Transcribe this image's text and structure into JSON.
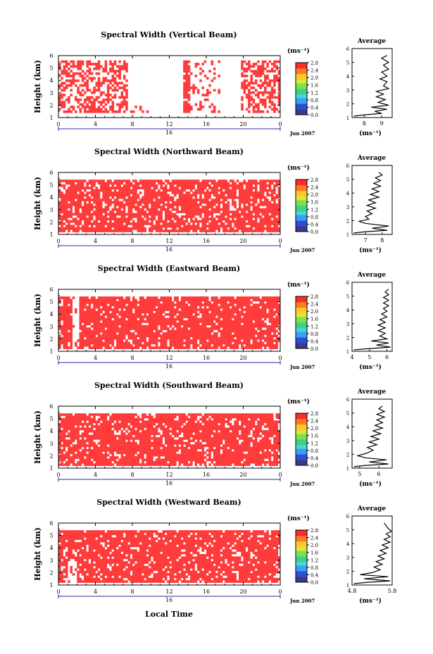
{
  "figure": {
    "xaxis_title": "Local Time",
    "cb_unit": "(ms⁻¹)",
    "avg_unit": "(ms⁻¹)",
    "avg_title": "Average",
    "day_label": "16",
    "month_label": "Jun 2007",
    "xticks": [
      "0",
      "4",
      "8",
      "12",
      "16",
      "20",
      "0"
    ],
    "yticks": [
      "1",
      "2",
      "3",
      "4",
      "5",
      "6"
    ],
    "cb_ticks": [
      "0.0",
      "0.4",
      "0.8",
      "1.2",
      "1.6",
      "2.0",
      "2.4",
      "2.8"
    ],
    "cb_ticks_top_variant": [
      "0.0",
      "0.4",
      "0.8",
      "1.2",
      "1.6",
      "2.0",
      "2.4",
      "2.8"
    ],
    "ylabel": "Height (km)",
    "colors": {
      "red": "#ff3b3b",
      "cmap": [
        "#3a3a8a",
        "#2d4fd8",
        "#3aa0f0",
        "#45d6e0",
        "#3fd08a",
        "#7fe04a",
        "#d8e83a",
        "#ffc82a",
        "#ff7a20",
        "#ff2a2a"
      ]
    }
  },
  "chart_data": [
    {
      "type": "heatmap",
      "title": "Spectral Width (Vertical Beam)",
      "xlabel": "Local Time",
      "ylabel": "Height (km)",
      "xlim": [
        0,
        24
      ],
      "ylim": [
        1,
        6
      ],
      "colorbar": {
        "label": "(ms⁻¹)",
        "range": [
          0.0,
          2.8
        ]
      },
      "average": {
        "xlabel": "(ms⁻¹)",
        "xticks": [
          "8",
          "9"
        ],
        "xlim": [
          7.3,
          9.6
        ],
        "profile": [
          [
            7.4,
            1.1
          ],
          [
            8.0,
            1.2
          ],
          [
            9.0,
            1.3
          ],
          [
            8.6,
            1.45
          ],
          [
            9.3,
            1.6
          ],
          [
            8.4,
            1.75
          ],
          [
            9.4,
            1.9
          ],
          [
            8.8,
            2.1
          ],
          [
            9.2,
            2.3
          ],
          [
            8.7,
            2.5
          ],
          [
            9.1,
            2.7
          ],
          [
            8.7,
            2.9
          ],
          [
            9.4,
            3.1
          ],
          [
            9.1,
            3.3
          ],
          [
            9.3,
            3.6
          ],
          [
            8.9,
            3.8
          ],
          [
            9.3,
            4.0
          ],
          [
            9.0,
            4.3
          ],
          [
            9.4,
            4.5
          ],
          [
            9.1,
            4.8
          ],
          [
            9.4,
            5.0
          ],
          [
            9.0,
            5.3
          ],
          [
            9.3,
            5.5
          ]
        ]
      }
    },
    {
      "type": "heatmap",
      "title": "Spectral Width (Northward Beam)",
      "xlabel": "Local Time",
      "ylabel": "Height (km)",
      "xlim": [
        0,
        24
      ],
      "ylim": [
        1,
        6
      ],
      "colorbar": {
        "label": "(ms⁻¹)",
        "range": [
          0.0,
          2.8
        ]
      },
      "average": {
        "xlabel": "(ms⁻¹)",
        "xticks": [
          "7",
          "8"
        ],
        "xlim": [
          6.2,
          8.6
        ],
        "profile": [
          [
            6.3,
            1.1
          ],
          [
            7.0,
            1.2
          ],
          [
            8.3,
            1.3
          ],
          [
            7.4,
            1.45
          ],
          [
            8.4,
            1.6
          ],
          [
            7.0,
            1.8
          ],
          [
            6.6,
            1.95
          ],
          [
            7.2,
            2.1
          ],
          [
            7.0,
            2.3
          ],
          [
            7.4,
            2.5
          ],
          [
            7.1,
            2.7
          ],
          [
            7.6,
            2.9
          ],
          [
            7.1,
            3.1
          ],
          [
            7.6,
            3.3
          ],
          [
            7.2,
            3.5
          ],
          [
            7.8,
            3.7
          ],
          [
            7.3,
            3.9
          ],
          [
            7.8,
            4.1
          ],
          [
            7.4,
            4.3
          ],
          [
            7.9,
            4.5
          ],
          [
            7.5,
            4.7
          ],
          [
            7.9,
            4.9
          ],
          [
            7.6,
            5.1
          ],
          [
            8.0,
            5.3
          ],
          [
            7.8,
            5.5
          ]
        ]
      }
    },
    {
      "type": "heatmap",
      "title": "Spectral Width (Eastward Beam)",
      "xlabel": "Local Time",
      "ylabel": "Height (km)",
      "xlim": [
        0,
        24
      ],
      "ylim": [
        1,
        6
      ],
      "colorbar": {
        "label": "(ms⁻¹)",
        "range": [
          0.0,
          2.8
        ]
      },
      "average": {
        "xlabel": "(ms⁻¹)",
        "xticks": [
          "4",
          "5",
          "6"
        ],
        "xlim": [
          4.0,
          6.3
        ],
        "profile": [
          [
            4.1,
            1.1
          ],
          [
            5.0,
            1.2
          ],
          [
            6.2,
            1.3
          ],
          [
            5.4,
            1.45
          ],
          [
            6.1,
            1.6
          ],
          [
            5.1,
            1.75
          ],
          [
            6.0,
            1.9
          ],
          [
            5.6,
            2.1
          ],
          [
            5.9,
            2.3
          ],
          [
            5.5,
            2.5
          ],
          [
            5.9,
            2.7
          ],
          [
            5.5,
            2.9
          ],
          [
            5.9,
            3.1
          ],
          [
            5.6,
            3.3
          ],
          [
            6.0,
            3.5
          ],
          [
            5.7,
            3.7
          ],
          [
            6.0,
            3.9
          ],
          [
            5.8,
            4.1
          ],
          [
            6.1,
            4.3
          ],
          [
            5.8,
            4.5
          ],
          [
            6.1,
            4.7
          ],
          [
            5.8,
            4.9
          ],
          [
            6.1,
            5.1
          ],
          [
            5.9,
            5.3
          ],
          [
            6.1,
            5.5
          ]
        ]
      }
    },
    {
      "type": "heatmap",
      "title": "Spectral Width (Southward Beam)",
      "xlabel": "Local Time",
      "ylabel": "Height (km)",
      "xlim": [
        0,
        24
      ],
      "ylim": [
        1,
        6
      ],
      "colorbar": {
        "label": "(ms⁻¹)",
        "range": [
          0.0,
          2.8
        ]
      },
      "average": {
        "xlabel": "(ms⁻¹)",
        "xticks": [
          "5",
          "6"
        ],
        "xlim": [
          4.6,
          6.7
        ],
        "profile": [
          [
            4.7,
            1.1
          ],
          [
            5.3,
            1.2
          ],
          [
            6.5,
            1.3
          ],
          [
            5.5,
            1.45
          ],
          [
            6.4,
            1.6
          ],
          [
            5.3,
            1.75
          ],
          [
            4.9,
            1.9
          ],
          [
            5.4,
            2.1
          ],
          [
            5.7,
            2.3
          ],
          [
            5.4,
            2.5
          ],
          [
            5.9,
            2.7
          ],
          [
            5.5,
            2.9
          ],
          [
            6.0,
            3.1
          ],
          [
            5.6,
            3.3
          ],
          [
            6.1,
            3.5
          ],
          [
            5.7,
            3.7
          ],
          [
            6.2,
            3.9
          ],
          [
            5.8,
            4.1
          ],
          [
            6.2,
            4.3
          ],
          [
            5.9,
            4.5
          ],
          [
            6.3,
            4.7
          ],
          [
            5.9,
            4.9
          ],
          [
            6.3,
            5.1
          ],
          [
            6.0,
            5.3
          ],
          [
            6.2,
            5.5
          ]
        ]
      }
    },
    {
      "type": "heatmap",
      "title": "Spectral Width (Westward Beam)",
      "xlabel": "Local Time",
      "ylabel": "Height (km)",
      "xlim": [
        0,
        24
      ],
      "ylim": [
        1,
        6
      ],
      "colorbar": {
        "label": "(ms⁻¹)",
        "range": [
          0.0,
          2.8
        ]
      },
      "average": {
        "xlabel": "(ms⁻¹)",
        "xticks": [
          "4.8",
          "5.8"
        ],
        "xlim": [
          4.8,
          5.8
        ],
        "profile": [
          [
            4.85,
            1.1
          ],
          [
            5.2,
            1.2
          ],
          [
            5.75,
            1.3
          ],
          [
            5.1,
            1.45
          ],
          [
            5.7,
            1.6
          ],
          [
            5.0,
            1.75
          ],
          [
            5.3,
            1.9
          ],
          [
            5.5,
            2.1
          ],
          [
            5.35,
            2.3
          ],
          [
            5.55,
            2.5
          ],
          [
            5.4,
            2.7
          ],
          [
            5.6,
            2.9
          ],
          [
            5.45,
            3.1
          ],
          [
            5.65,
            3.3
          ],
          [
            5.5,
            3.5
          ],
          [
            5.7,
            3.7
          ],
          [
            5.55,
            3.9
          ],
          [
            5.75,
            4.1
          ],
          [
            5.6,
            4.3
          ],
          [
            5.75,
            4.5
          ],
          [
            5.65,
            4.7
          ],
          [
            5.78,
            4.9
          ],
          [
            5.7,
            5.1
          ],
          [
            5.65,
            5.3
          ],
          [
            5.6,
            5.5
          ]
        ]
      }
    }
  ]
}
